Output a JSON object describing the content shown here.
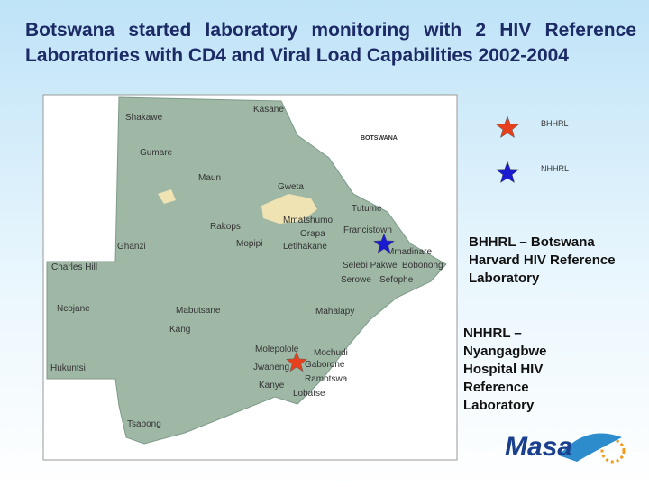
{
  "title": "Botswana started laboratory monitoring with 2 HIV Reference Laboratories with CD4 and Viral Load Capabilities 2002-2004",
  "map": {
    "country_label": "BOTSWANA",
    "places": [
      "Shakawe",
      "Kasane",
      "Gumare",
      "Maun",
      "Gweta",
      "Tutume",
      "Rakops",
      "Mmatshumo",
      "Francistown",
      "Orapa",
      "Ghanzi",
      "Mopipi",
      "Letlhakane",
      "Mmadinare",
      "Charles Hill",
      "Selebi Pakwe",
      "Bobonong",
      "Serowe",
      "Sefophe",
      "Ncojane",
      "Mabutsane",
      "Mahalapy",
      "Kang",
      "Molepolole",
      "Mochudi",
      "Gaborone",
      "Hukuntsi",
      "Jwaneng",
      "Ramotswa",
      "Kanye",
      "Lobatse",
      "Tsabong"
    ]
  },
  "legend": [
    {
      "label": "BHHRL",
      "color": "#e8401c"
    },
    {
      "label": "NHHRL",
      "color": "#1a1ad0"
    }
  ],
  "definitions": [
    "BHHRL – Botswana Harvard HIV Reference Laboratory",
    "NHHRL – Nyangagbwe Hospital HIV Reference Laboratory"
  ],
  "logo": {
    "text": "Masa"
  }
}
